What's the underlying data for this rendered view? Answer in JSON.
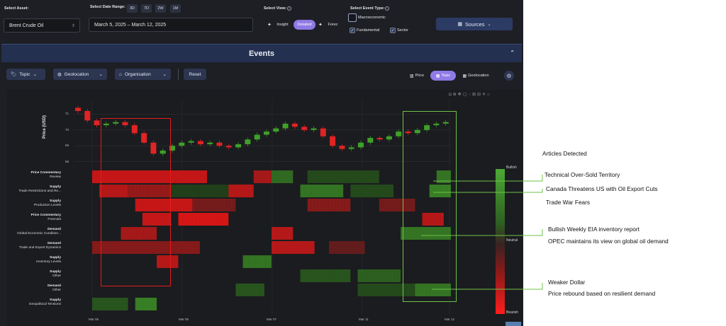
{
  "controls": {
    "asset_label": "Select Asset:",
    "asset_value": "Brent Crude Oil",
    "date_range_label": "Select Date Range:",
    "date_range_buttons": [
      "3D",
      "7D",
      "2W",
      "1M"
    ],
    "date_range_value": "March 5, 2025 – March 12, 2025",
    "view_label": "Select View:",
    "views": [
      "Insight",
      "Detailed",
      "Forec"
    ],
    "view_selected": "Detailed",
    "event_type_label": "Select Event Type:",
    "event_types": [
      {
        "label": "Macroeconomic",
        "checked": false
      },
      {
        "label": "Fundamental",
        "checked": true
      },
      {
        "label": "Sector",
        "checked": true
      }
    ],
    "sources_label": "Sources"
  },
  "events": {
    "title": "Events",
    "filters": [
      "Topic",
      "Geolocation",
      "Organisation"
    ],
    "reset_label": "Reset",
    "modes": [
      "Price",
      "Topic",
      "Geolocation"
    ],
    "mode_selected": "Topic"
  },
  "icons": {
    "info": "info-icon",
    "chevron": "chevron-down-icon",
    "sparkle": "sparkle-icon",
    "tag": "tag-icon",
    "globe": "globe-icon",
    "building": "building-icon",
    "grid": "grid-icon",
    "gear": "gear-icon",
    "collapse": "chevron-up-icon"
  },
  "chart_data": {
    "type": "heatmap",
    "price": {
      "ylabel": "Price (USD)",
      "yticks": [
        68,
        69,
        70,
        71
      ],
      "ylim": [
        67.8,
        71.6
      ],
      "series_close": [
        71.2,
        70.6,
        70.3,
        70.4,
        70.5,
        70.3,
        69.8,
        69.2,
        68.5,
        68.7,
        69.0,
        69.2,
        69.3,
        69.1,
        69.2,
        69.0,
        68.9,
        69.1,
        69.4,
        69.7,
        69.9,
        70.1,
        70.4,
        70.2,
        70.0,
        70.1,
        69.6,
        69.0,
        68.8,
        68.9,
        69.2,
        69.5,
        69.4,
        69.6,
        69.9,
        69.8,
        70.0,
        70.3,
        70.4,
        70.5
      ]
    },
    "heatmap": {
      "rows": [
        {
          "category": "Price Commentary",
          "topic": "Review"
        },
        {
          "category": "Supply",
          "topic": "Trade Restrictions and Re..."
        },
        {
          "category": "Supply",
          "topic": "Production Levels"
        },
        {
          "category": "Price Commentary",
          "topic": "Forecast"
        },
        {
          "category": "Demand",
          "topic": "Global Economic Condition..."
        },
        {
          "category": "Demand",
          "topic": "Trade and Export Dynamics"
        },
        {
          "category": "Supply",
          "topic": "Inventory Levels"
        },
        {
          "category": "Supply",
          "topic": "Other"
        },
        {
          "category": "Demand",
          "topic": "Other"
        },
        {
          "category": "Supply",
          "topic": "Geopolitical Tensions"
        }
      ],
      "x_start": "Mar 05",
      "x_ticks": [
        "Mar 05",
        "Mar 06",
        "Mar 07",
        "Mar 11",
        "Mar 12"
      ],
      "cells": [
        [
          [
            0.0,
            0.32,
            -0.8
          ],
          [
            0.45,
            0.5,
            -0.6
          ],
          [
            0.5,
            0.56,
            0.5
          ],
          [
            0.6,
            0.8,
            0.2
          ],
          [
            0.96,
            1.0,
            0.6
          ]
        ],
        [
          [
            0.02,
            0.1,
            -0.7
          ],
          [
            0.1,
            0.22,
            -0.5
          ],
          [
            0.22,
            0.4,
            0.1
          ],
          [
            0.38,
            0.45,
            -0.7
          ],
          [
            0.58,
            0.7,
            0.6
          ],
          [
            0.72,
            0.84,
            0.2
          ],
          [
            0.94,
            1.0,
            0.7
          ]
        ],
        [
          [
            0.12,
            0.28,
            -0.8
          ],
          [
            0.28,
            0.4,
            -0.3
          ],
          [
            0.6,
            0.72,
            -0.4
          ],
          [
            0.8,
            0.9,
            -0.3
          ]
        ],
        [
          [
            0.14,
            0.22,
            -0.8
          ],
          [
            0.24,
            0.38,
            -0.9
          ],
          [
            0.92,
            0.98,
            -0.7
          ]
        ],
        [
          [
            0.08,
            0.18,
            -0.6
          ],
          [
            0.5,
            0.56,
            -0.7
          ],
          [
            0.86,
            1.0,
            0.6
          ]
        ],
        [
          [
            0.0,
            0.3,
            -0.4
          ],
          [
            0.5,
            0.62,
            -0.7
          ],
          [
            0.66,
            0.76,
            -0.2
          ]
        ],
        [
          [
            0.18,
            0.24,
            -0.7
          ],
          [
            0.42,
            0.5,
            0.6
          ]
        ],
        [
          [
            0.58,
            0.72,
            0.3
          ],
          [
            0.74,
            0.86,
            0.4
          ]
        ],
        [
          [
            0.4,
            0.48,
            0.3
          ],
          [
            0.74,
            0.92,
            0.2
          ],
          [
            0.9,
            1.0,
            0.6
          ]
        ],
        [
          [
            0.0,
            0.1,
            0.3
          ],
          [
            0.12,
            0.18,
            0.7
          ]
        ]
      ]
    },
    "legend": {
      "title": "Articles Detected",
      "top": "Bullish",
      "middle": "Neutral",
      "bottom": "Bearish"
    }
  },
  "annotations": [
    "Technical Over-Sold Territory",
    "Canada Threatens US with Oil Export Cuts",
    "Trade War Fears",
    "Bullish Weekly EIA inventory report",
    "OPEC maintains its view on global oil demand",
    "Weaker Dollar",
    "Price rebound based on resilient demand"
  ],
  "colors": {
    "bullish": "#3fa02a",
    "bearish": "#e02424",
    "accent": "#8f7ae6",
    "highlight_red": "#e21b1b",
    "highlight_green": "#6fc24a"
  }
}
